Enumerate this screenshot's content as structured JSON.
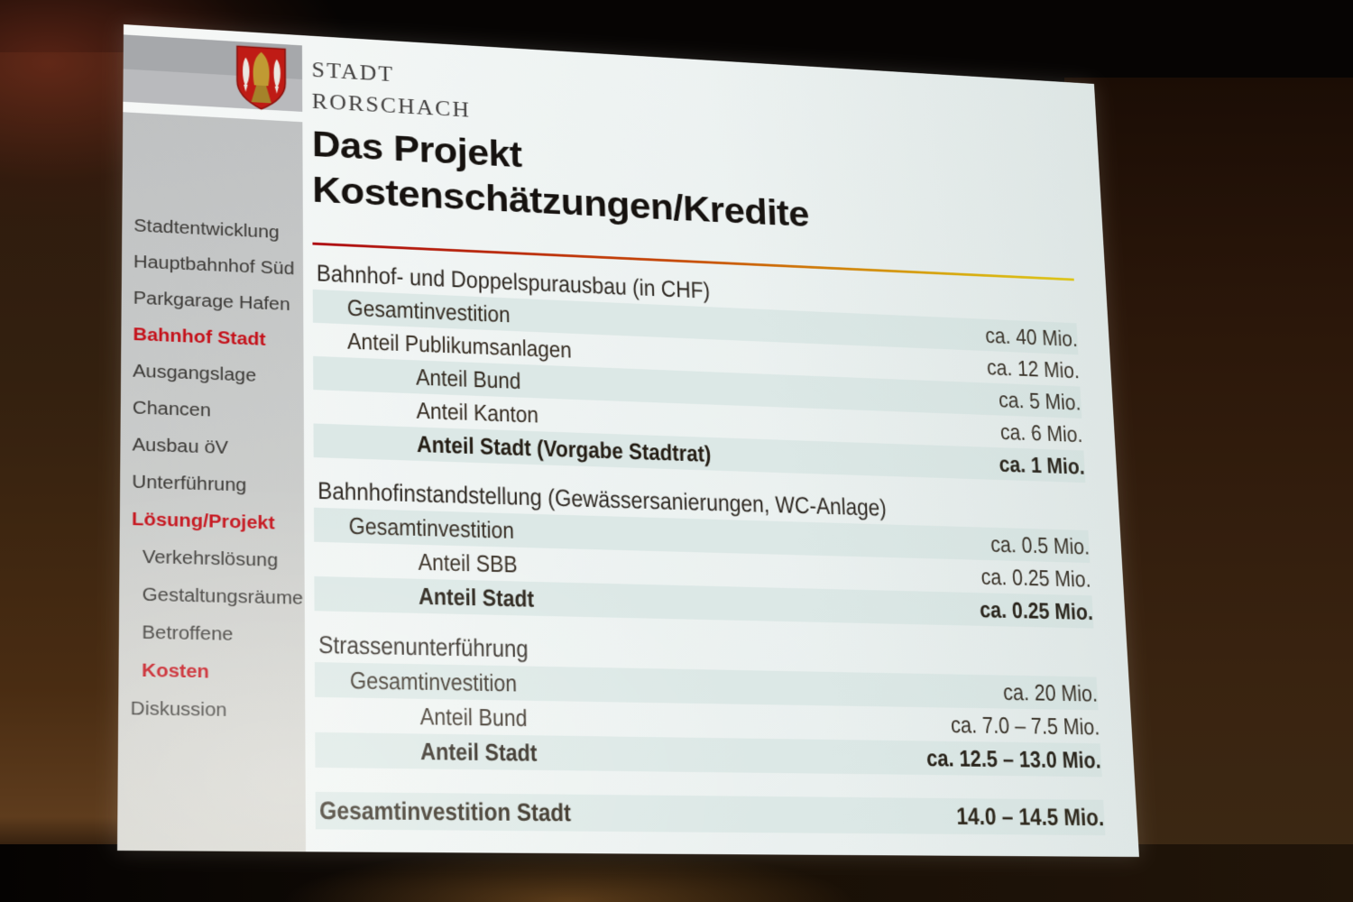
{
  "brand": {
    "crest": "rorschach-coat-of-arms",
    "org_line1": "STADT",
    "org_line2": "RORSCHACH"
  },
  "title": {
    "line1": "Das Projekt",
    "line2": "Kostenschätzungen/Kredite"
  },
  "sidebar": {
    "items": [
      {
        "label": "Stadtentwicklung",
        "active": false,
        "indent": 0
      },
      {
        "label": "Hauptbahnhof Süd",
        "active": false,
        "indent": 0
      },
      {
        "label": "Parkgarage Hafen",
        "active": false,
        "indent": 0
      },
      {
        "label": "Bahnhof Stadt",
        "active": true,
        "indent": 0
      },
      {
        "label": "Ausgangslage",
        "active": false,
        "indent": 0
      },
      {
        "label": "Chancen",
        "active": false,
        "indent": 0
      },
      {
        "label": "Ausbau öV",
        "active": false,
        "indent": 0
      },
      {
        "label": "Unterführung",
        "active": false,
        "indent": 0
      },
      {
        "label": "Lösung/Projekt",
        "active": true,
        "indent": 0
      },
      {
        "label": "Verkehrslösung",
        "active": false,
        "indent": 1
      },
      {
        "label": "Gestaltungsräume",
        "active": false,
        "indent": 1
      },
      {
        "label": "Betroffene",
        "active": false,
        "indent": 1
      },
      {
        "label": "Kosten",
        "active": true,
        "indent": 1
      },
      {
        "label": "Diskussion",
        "active": false,
        "indent": 0
      }
    ]
  },
  "table": {
    "currency_note": "(in CHF)",
    "sections": [
      {
        "header": "Bahnhof- und Doppelspurausbau (in CHF)",
        "rows": [
          {
            "label": "Gesamtinvestition",
            "value": "ca. 40 Mio.",
            "indent": 1,
            "bold": false
          },
          {
            "label": "Anteil Publikumsanlagen",
            "value": "ca. 12 Mio.",
            "indent": 1,
            "bold": false
          },
          {
            "label": "Anteil Bund",
            "value": "ca. 5 Mio.",
            "indent": 2,
            "bold": false
          },
          {
            "label": "Anteil Kanton",
            "value": "ca. 6 Mio.",
            "indent": 2,
            "bold": false
          },
          {
            "label": "Anteil Stadt (Vorgabe Stadtrat)",
            "value": "ca. 1 Mio.",
            "indent": 2,
            "bold": true
          }
        ]
      },
      {
        "header": "Bahnhofinstandstellung (Gewässersanierungen, WC-Anlage)",
        "rows": [
          {
            "label": "Gesamtinvestition",
            "value": "ca. 0.5 Mio.",
            "indent": 1,
            "bold": false
          },
          {
            "label": "Anteil SBB",
            "value": "ca. 0.25 Mio.",
            "indent": 2,
            "bold": false
          },
          {
            "label": "Anteil Stadt",
            "value": "ca. 0.25 Mio.",
            "indent": 2,
            "bold": true
          }
        ]
      },
      {
        "header": "Strassenunterführung",
        "rows": [
          {
            "label": "Gesamtinvestition",
            "value": "ca. 20 Mio.",
            "indent": 1,
            "bold": false
          },
          {
            "label": "Anteil Bund",
            "value": "ca. 7.0 – 7.5 Mio.",
            "indent": 2,
            "bold": false
          },
          {
            "label": "Anteil Stadt",
            "value": "ca. 12.5 – 13.0 Mio.",
            "indent": 2,
            "bold": true
          }
        ]
      }
    ],
    "footer": {
      "label": "Gesamtinvestition Stadt",
      "value": "14.0 – 14.5 Mio."
    }
  },
  "colors": {
    "accent_red": "#c5121b",
    "stripe_shaded": "#dce8e6",
    "stripe_light": "#eef3f2",
    "crest_red": "#bf1b15",
    "crest_gold": "#c09a33",
    "crest_fish": "#eae8e1",
    "rule_gradient": [
      "#ad0a10",
      "#e6c90a"
    ]
  }
}
